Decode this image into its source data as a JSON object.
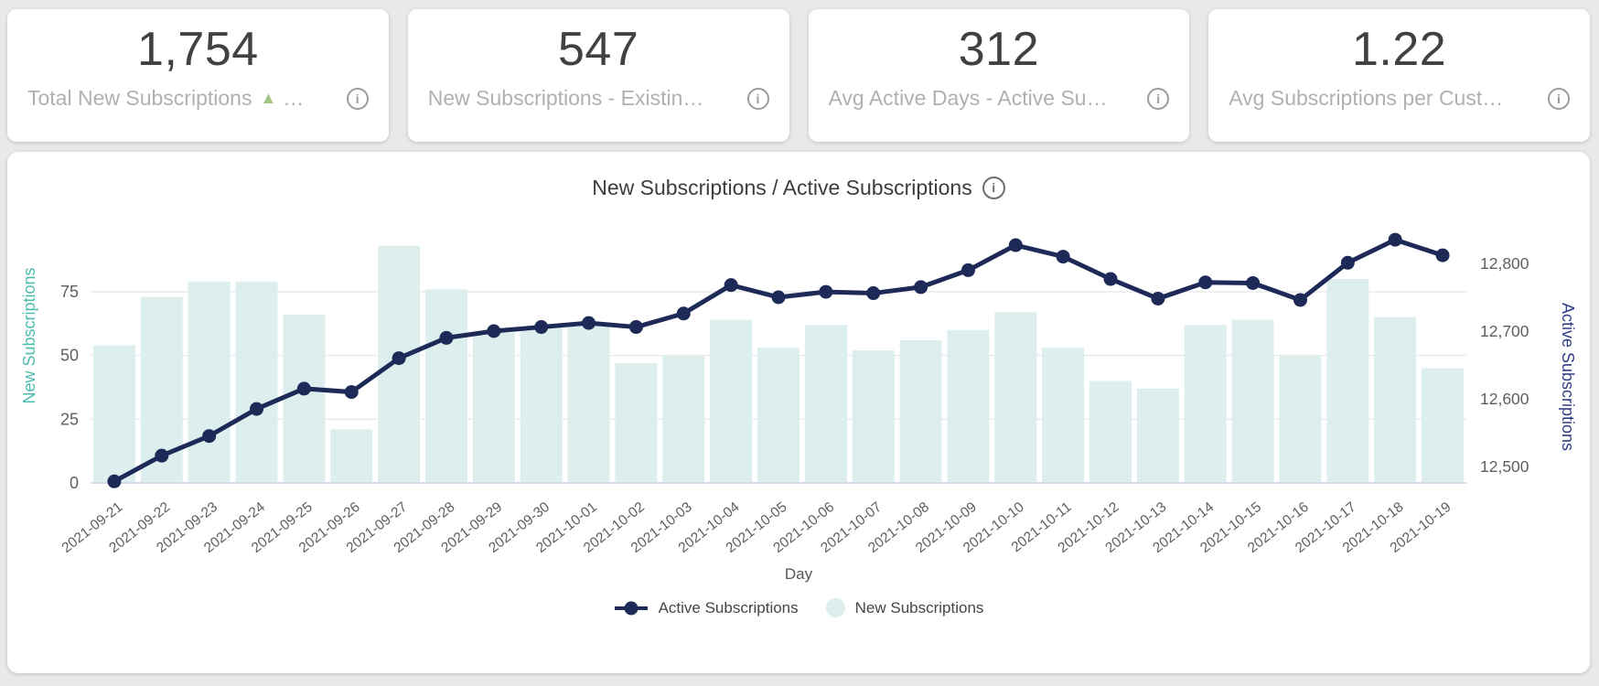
{
  "colors": {
    "page_bg": "#e9e9e9",
    "card_bg": "#ffffff",
    "bar_fill": "#dceeee",
    "line": "#1d2956",
    "left_axis_title": "#4bbcae",
    "right_axis_title": "#2e3d85",
    "tick_label": "#5f5f5f",
    "gridline": "#ebebeb",
    "baseline": "#d8dbee",
    "delta_green": "#a3c583"
  },
  "kpi_cards": [
    {
      "value": "1,754",
      "label": "Total New Subscriptions",
      "delta_triangle": "▲",
      "label_suffix": "…",
      "info_icon": "circled-i"
    },
    {
      "value": "547",
      "label": "New Subscriptions - Existin…",
      "info_icon": "circled-i"
    },
    {
      "value": "312",
      "label": "Avg Active Days - Active Su…",
      "info_icon": "circled-i"
    },
    {
      "value": "1.22",
      "label": "Avg Subscriptions per Cust…",
      "info_icon": "circled-i"
    }
  ],
  "chart": {
    "title": "New Subscriptions / Active Subscriptions",
    "title_info_icon": "circled-i",
    "x_axis_title": "Day",
    "legend": [
      {
        "label": "Active Subscriptions",
        "marker": "line-dot"
      },
      {
        "label": "New Subscriptions",
        "marker": "circle"
      }
    ]
  },
  "chart_data": {
    "type": "bar",
    "subtype": "dual-axis bar + line combo",
    "title": "New Subscriptions / Active Subscriptions",
    "xlabel": "Day",
    "grid": "horizontal",
    "legend_position": "bottom",
    "categories": [
      "2021-09-21",
      "2021-09-22",
      "2021-09-23",
      "2021-09-24",
      "2021-09-25",
      "2021-09-26",
      "2021-09-27",
      "2021-09-28",
      "2021-09-29",
      "2021-09-30",
      "2021-10-01",
      "2021-10-02",
      "2021-10-03",
      "2021-10-04",
      "2021-10-05",
      "2021-10-06",
      "2021-10-07",
      "2021-10-08",
      "2021-10-09",
      "2021-10-10",
      "2021-10-11",
      "2021-10-12",
      "2021-10-13",
      "2021-10-14",
      "2021-10-15",
      "2021-10-16",
      "2021-10-17",
      "2021-10-18",
      "2021-10-19"
    ],
    "series": [
      {
        "name": "New Subscriptions",
        "type": "bar",
        "axis": "left",
        "values": [
          54,
          73,
          79,
          79,
          66,
          21,
          93,
          76,
          59,
          61,
          62,
          47,
          50,
          64,
          53,
          62,
          52,
          56,
          60,
          67,
          53,
          40,
          37,
          62,
          64,
          50,
          80,
          65,
          45
        ]
      },
      {
        "name": "Active Subscriptions",
        "type": "line",
        "axis": "right",
        "values": [
          12478,
          12516,
          12545,
          12585,
          12615,
          12610,
          12660,
          12690,
          12700,
          12706,
          12712,
          12706,
          12726,
          12768,
          12750,
          12758,
          12756,
          12765,
          12790,
          12827,
          12810,
          12777,
          12748,
          12772,
          12771,
          12746,
          12801,
          12835,
          12812
        ]
      }
    ],
    "left_axis": {
      "label": "New Subscriptions",
      "ticks": [
        0,
        25,
        50,
        75
      ],
      "range": [
        0,
        100
      ]
    },
    "right_axis": {
      "label": "Active Subscriptions",
      "ticks": [
        12500,
        12600,
        12700,
        12800
      ],
      "tick_labels": [
        "12,500",
        "12,600",
        "12,700",
        "12,800"
      ],
      "range": [
        12450,
        12890
      ]
    }
  }
}
